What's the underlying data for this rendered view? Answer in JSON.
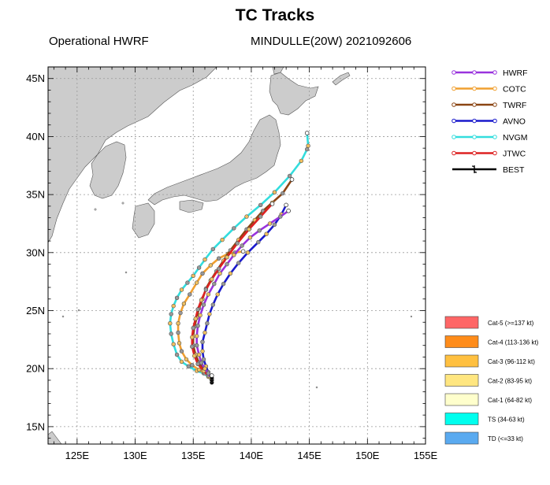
{
  "title": "TC Tracks",
  "subtitle_left": "Operational HWRF",
  "subtitle_right": "MINDULLE(20W) 2021092606",
  "map": {
    "lon_range": [
      122.5,
      155
    ],
    "lat_range": [
      13.5,
      46
    ],
    "lon_ticks": [
      125,
      130,
      135,
      140,
      145,
      150,
      155
    ],
    "lat_ticks": [
      15,
      20,
      25,
      30,
      35,
      40,
      45
    ],
    "lon_tick_labels": [
      "125E",
      "130E",
      "135E",
      "140E",
      "145E",
      "150E",
      "155E"
    ],
    "lat_tick_labels": [
      "15N",
      "20N",
      "25N",
      "30N",
      "35N",
      "40N",
      "45N"
    ],
    "grid": true,
    "land_color": "#cccccc",
    "ocean_color": "#ffffff"
  },
  "tracks": [
    {
      "name": "NVGM",
      "color": "#33dddd",
      "points": [
        [
          136.3,
          19.3
        ],
        [
          135.9,
          19.6
        ],
        [
          135.3,
          19.8
        ],
        [
          134.6,
          20.2
        ],
        [
          134.0,
          20.6
        ],
        [
          133.6,
          21.2
        ],
        [
          133.3,
          22.1
        ],
        [
          133.1,
          23.0
        ],
        [
          133.0,
          23.9
        ],
        [
          133.1,
          24.7
        ],
        [
          133.3,
          25.4
        ],
        [
          133.6,
          26.1
        ],
        [
          134.0,
          26.8
        ],
        [
          134.5,
          27.4
        ],
        [
          135.0,
          28.0
        ],
        [
          135.5,
          28.7
        ],
        [
          136.0,
          29.4
        ],
        [
          136.7,
          30.3
        ],
        [
          137.5,
          31.1
        ],
        [
          138.5,
          32.1
        ],
        [
          139.6,
          33.1
        ],
        [
          140.8,
          34.1
        ],
        [
          142.0,
          35.2
        ],
        [
          143.3,
          36.6
        ],
        [
          144.3,
          37.9
        ],
        [
          144.8,
          38.9
        ],
        [
          144.9,
          39.2
        ],
        [
          144.8,
          40.3
        ]
      ]
    },
    {
      "name": "COTC",
      "color": "#f0a030",
      "points": [
        [
          136.4,
          19.4
        ],
        [
          136.0,
          19.6
        ],
        [
          135.5,
          19.9
        ],
        [
          134.9,
          20.3
        ],
        [
          134.4,
          20.8
        ],
        [
          134.0,
          21.5
        ],
        [
          133.8,
          22.2
        ],
        [
          133.7,
          23.1
        ],
        [
          133.7,
          23.9
        ],
        [
          133.9,
          24.8
        ],
        [
          134.2,
          25.6
        ],
        [
          134.7,
          26.4
        ],
        [
          135.3,
          27.4
        ],
        [
          135.8,
          28.2
        ],
        [
          136.5,
          28.9
        ],
        [
          137.2,
          29.5
        ],
        [
          138.0,
          29.9
        ],
        [
          138.6,
          30.0
        ],
        [
          139.3,
          30.1
        ]
      ]
    },
    {
      "name": "TWRF",
      "color": "#8b4513",
      "points": [
        [
          136.6,
          19.1
        ],
        [
          136.3,
          19.5
        ],
        [
          135.9,
          19.9
        ],
        [
          135.5,
          20.5
        ],
        [
          135.2,
          21.2
        ],
        [
          135.0,
          22.0
        ],
        [
          135.0,
          22.8
        ],
        [
          135.1,
          23.6
        ],
        [
          135.3,
          24.4
        ],
        [
          135.5,
          25.2
        ],
        [
          135.8,
          26.0
        ],
        [
          136.1,
          26.9
        ],
        [
          136.5,
          27.6
        ],
        [
          137.0,
          28.4
        ],
        [
          137.6,
          29.3
        ],
        [
          138.2,
          30.2
        ],
        [
          138.9,
          31.1
        ],
        [
          139.6,
          32.0
        ],
        [
          140.3,
          32.8
        ],
        [
          141.0,
          33.6
        ],
        [
          141.8,
          34.3
        ],
        [
          142.7,
          35.1
        ],
        [
          143.5,
          36.3
        ]
      ]
    },
    {
      "name": "AVNO",
      "color": "#1a1acc",
      "points": [
        [
          136.5,
          19.3
        ],
        [
          136.3,
          19.7
        ],
        [
          136.1,
          20.2
        ],
        [
          135.9,
          20.8
        ],
        [
          135.8,
          21.5
        ],
        [
          135.8,
          22.3
        ],
        [
          136.0,
          23.1
        ],
        [
          136.2,
          23.9
        ],
        [
          136.4,
          24.7
        ],
        [
          136.7,
          25.5
        ],
        [
          137.1,
          26.4
        ],
        [
          137.6,
          27.3
        ],
        [
          138.2,
          28.2
        ],
        [
          138.9,
          29.1
        ],
        [
          139.7,
          30.0
        ],
        [
          140.6,
          30.9
        ],
        [
          141.3,
          31.6
        ],
        [
          142.0,
          32.4
        ],
        [
          142.6,
          33.3
        ],
        [
          143.0,
          34.1
        ]
      ]
    },
    {
      "name": "JTWC",
      "color": "#dd2222",
      "points": [
        [
          136.6,
          19.0
        ],
        [
          136.3,
          19.4
        ],
        [
          135.9,
          19.8
        ],
        [
          135.4,
          20.4
        ],
        [
          135.1,
          21.1
        ],
        [
          134.9,
          21.9
        ],
        [
          134.9,
          22.7
        ],
        [
          135.0,
          23.5
        ],
        [
          135.2,
          24.3
        ],
        [
          135.4,
          25.1
        ],
        [
          135.7,
          25.9
        ],
        [
          136.1,
          26.8
        ],
        [
          136.6,
          27.7
        ],
        [
          137.2,
          28.6
        ],
        [
          137.9,
          29.6
        ],
        [
          138.8,
          30.8
        ],
        [
          139.8,
          32.0
        ],
        [
          140.8,
          33.1
        ],
        [
          141.8,
          34.2
        ]
      ]
    },
    {
      "name": "HWRF",
      "color": "#9933dd",
      "points": [
        [
          136.5,
          19.2
        ],
        [
          136.3,
          19.6
        ],
        [
          136.0,
          20.0
        ],
        [
          135.7,
          20.5
        ],
        [
          135.5,
          21.2
        ],
        [
          135.3,
          22.0
        ],
        [
          135.3,
          22.8
        ],
        [
          135.4,
          23.7
        ],
        [
          135.6,
          24.6
        ],
        [
          135.9,
          25.5
        ],
        [
          136.3,
          26.4
        ],
        [
          136.8,
          27.3
        ],
        [
          137.3,
          28.2
        ],
        [
          137.9,
          29.0
        ],
        [
          138.5,
          29.8
        ],
        [
          139.2,
          30.6
        ],
        [
          139.9,
          31.3
        ],
        [
          140.7,
          31.9
        ],
        [
          141.6,
          32.5
        ],
        [
          142.5,
          33.1
        ],
        [
          143.2,
          33.6
        ]
      ]
    },
    {
      "name": "BEST",
      "color": "#000000",
      "points": [
        [
          136.6,
          18.8
        ],
        [
          136.6,
          19.0
        ],
        [
          136.6,
          19.2
        ],
        [
          136.6,
          19.4
        ]
      ]
    }
  ],
  "legend": [
    {
      "name": "HWRF",
      "color": "#9933dd"
    },
    {
      "name": "COTC",
      "color": "#f0a030"
    },
    {
      "name": "TWRF",
      "color": "#8b4513"
    },
    {
      "name": "AVNO",
      "color": "#1a1acc"
    },
    {
      "name": "NVGM",
      "color": "#33dddd"
    },
    {
      "name": "JTWC",
      "color": "#dd2222"
    },
    {
      "name": "BEST",
      "color": "#000000"
    }
  ],
  "intensity_legend": [
    {
      "label": "Cat-5 (>=137 kt)",
      "color": "#ff6666"
    },
    {
      "label": "Cat-4 (113-136 kt)",
      "color": "#ff8c1a"
    },
    {
      "label": "Cat-3 (96-112 kt)",
      "color": "#ffc040"
    },
    {
      "label": "Cat-2 (83-95 kt)",
      "color": "#ffe680"
    },
    {
      "label": "Cat-1 (64-82 kt)",
      "color": "#ffffcc"
    },
    {
      "label": "TS (34-63 kt)",
      "color": "#00ffee"
    },
    {
      "label": "TD (<=33 kt)",
      "color": "#5aaaf0"
    }
  ]
}
